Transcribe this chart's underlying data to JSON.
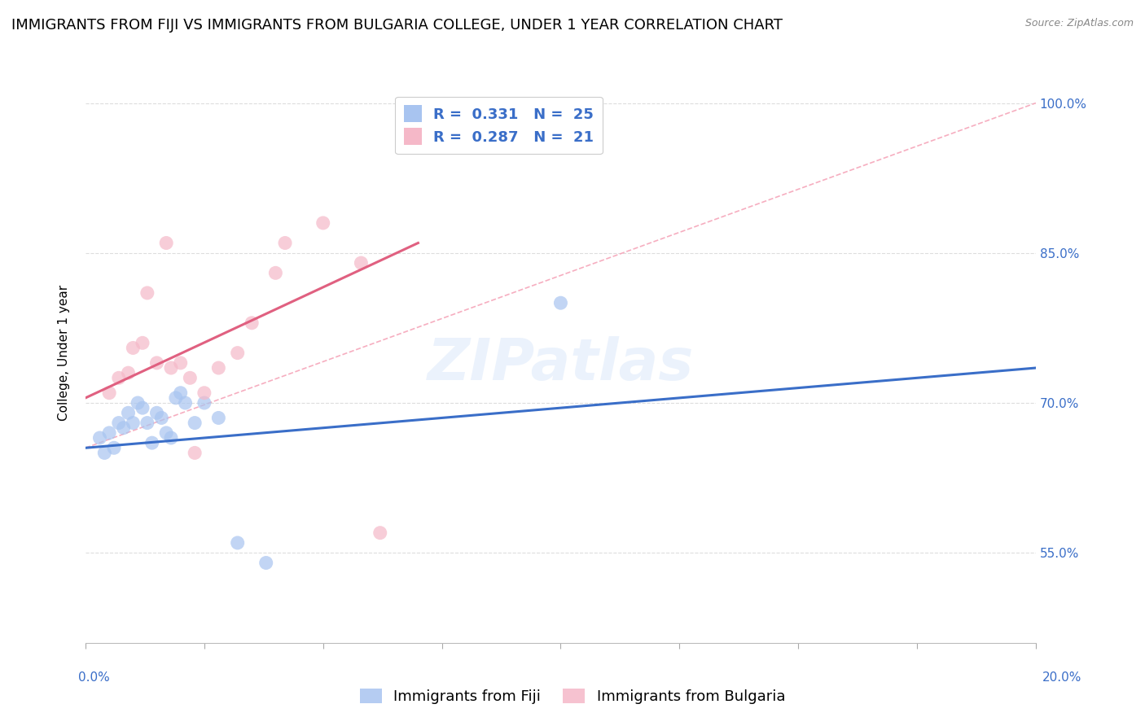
{
  "title": "IMMIGRANTS FROM FIJI VS IMMIGRANTS FROM BULGARIA COLLEGE, UNDER 1 YEAR CORRELATION CHART",
  "source": "Source: ZipAtlas.com",
  "ylabel": "College, Under 1 year",
  "xmin": 0.0,
  "xmax": 20.0,
  "ymin": 46.0,
  "ymax": 104.0,
  "watermark": "ZIPatlas",
  "fiji_R": 0.331,
  "fiji_N": 25,
  "bulgaria_R": 0.287,
  "bulgaria_N": 21,
  "fiji_color": "#a8c4f0",
  "bulgaria_color": "#f5b8c8",
  "fiji_line_color": "#3a6ec8",
  "bulgaria_line_color": "#e06080",
  "legend_text_color": "#3a6ec8",
  "fiji_scatter_x": [
    0.3,
    0.4,
    0.5,
    0.6,
    0.7,
    0.8,
    0.9,
    1.0,
    1.1,
    1.2,
    1.3,
    1.4,
    1.5,
    1.6,
    1.7,
    1.8,
    1.9,
    2.0,
    2.1,
    2.3,
    2.5,
    2.8,
    3.2,
    3.8,
    10.0
  ],
  "fiji_scatter_y": [
    66.5,
    65.0,
    67.0,
    65.5,
    68.0,
    67.5,
    69.0,
    68.0,
    70.0,
    69.5,
    68.0,
    66.0,
    69.0,
    68.5,
    67.0,
    66.5,
    70.5,
    71.0,
    70.0,
    68.0,
    70.0,
    68.5,
    56.0,
    54.0,
    80.0
  ],
  "bulgaria_scatter_x": [
    0.5,
    0.7,
    0.9,
    1.0,
    1.2,
    1.5,
    1.8,
    2.0,
    2.2,
    2.5,
    2.8,
    3.2,
    3.5,
    4.0,
    4.2,
    5.0,
    5.8,
    1.3,
    1.7,
    2.3,
    6.2
  ],
  "bulgaria_scatter_y": [
    71.0,
    72.5,
    73.0,
    75.5,
    76.0,
    74.0,
    73.5,
    74.0,
    72.5,
    71.0,
    73.5,
    75.0,
    78.0,
    83.0,
    86.0,
    88.0,
    84.0,
    81.0,
    86.0,
    65.0,
    57.0
  ],
  "fiji_trend_x": [
    0.0,
    20.0
  ],
  "fiji_trend_y": [
    65.5,
    73.5
  ],
  "bulgaria_trend_x": [
    0.0,
    7.0
  ],
  "bulgaria_trend_y": [
    70.5,
    86.0
  ],
  "ref_line_x": [
    0.0,
    20.0
  ],
  "ref_line_y": [
    65.5,
    100.0
  ],
  "ref_line_color": "#f5a0b5",
  "background_color": "#ffffff",
  "grid_color": "#dddddd",
  "title_fontsize": 13,
  "axis_label_fontsize": 11,
  "tick_fontsize": 11,
  "legend_fontsize": 13,
  "ytick_vals": [
    55.0,
    70.0,
    85.0,
    100.0
  ],
  "ytick_labels": [
    "55.0%",
    "70.0%",
    "85.0%",
    "100.0%"
  ]
}
